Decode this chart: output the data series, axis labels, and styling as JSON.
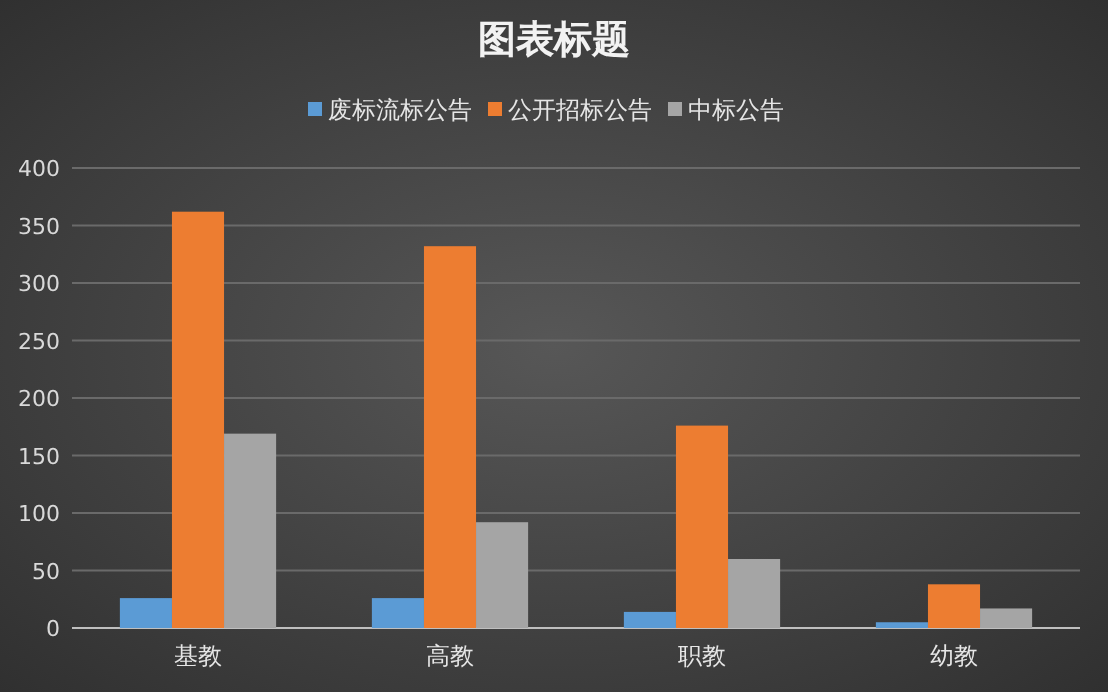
{
  "chart_data": {
    "type": "bar",
    "title": "图表标题",
    "categories": [
      "基教",
      "高教",
      "职教",
      "幼教"
    ],
    "series": [
      {
        "name": "废标流标公告",
        "color": "#5b9bd5",
        "values": [
          26,
          26,
          14,
          5
        ]
      },
      {
        "name": "公开招标公告",
        "color": "#ed7d31",
        "values": [
          362,
          332,
          176,
          38
        ]
      },
      {
        "name": "中标公告",
        "color": "#a5a5a5",
        "values": [
          169,
          92,
          60,
          17
        ]
      }
    ],
    "ylim": [
      0,
      400
    ],
    "yticks": [
      0,
      50,
      100,
      150,
      200,
      250,
      300,
      350,
      400
    ],
    "grid": "y",
    "legend": "top"
  }
}
